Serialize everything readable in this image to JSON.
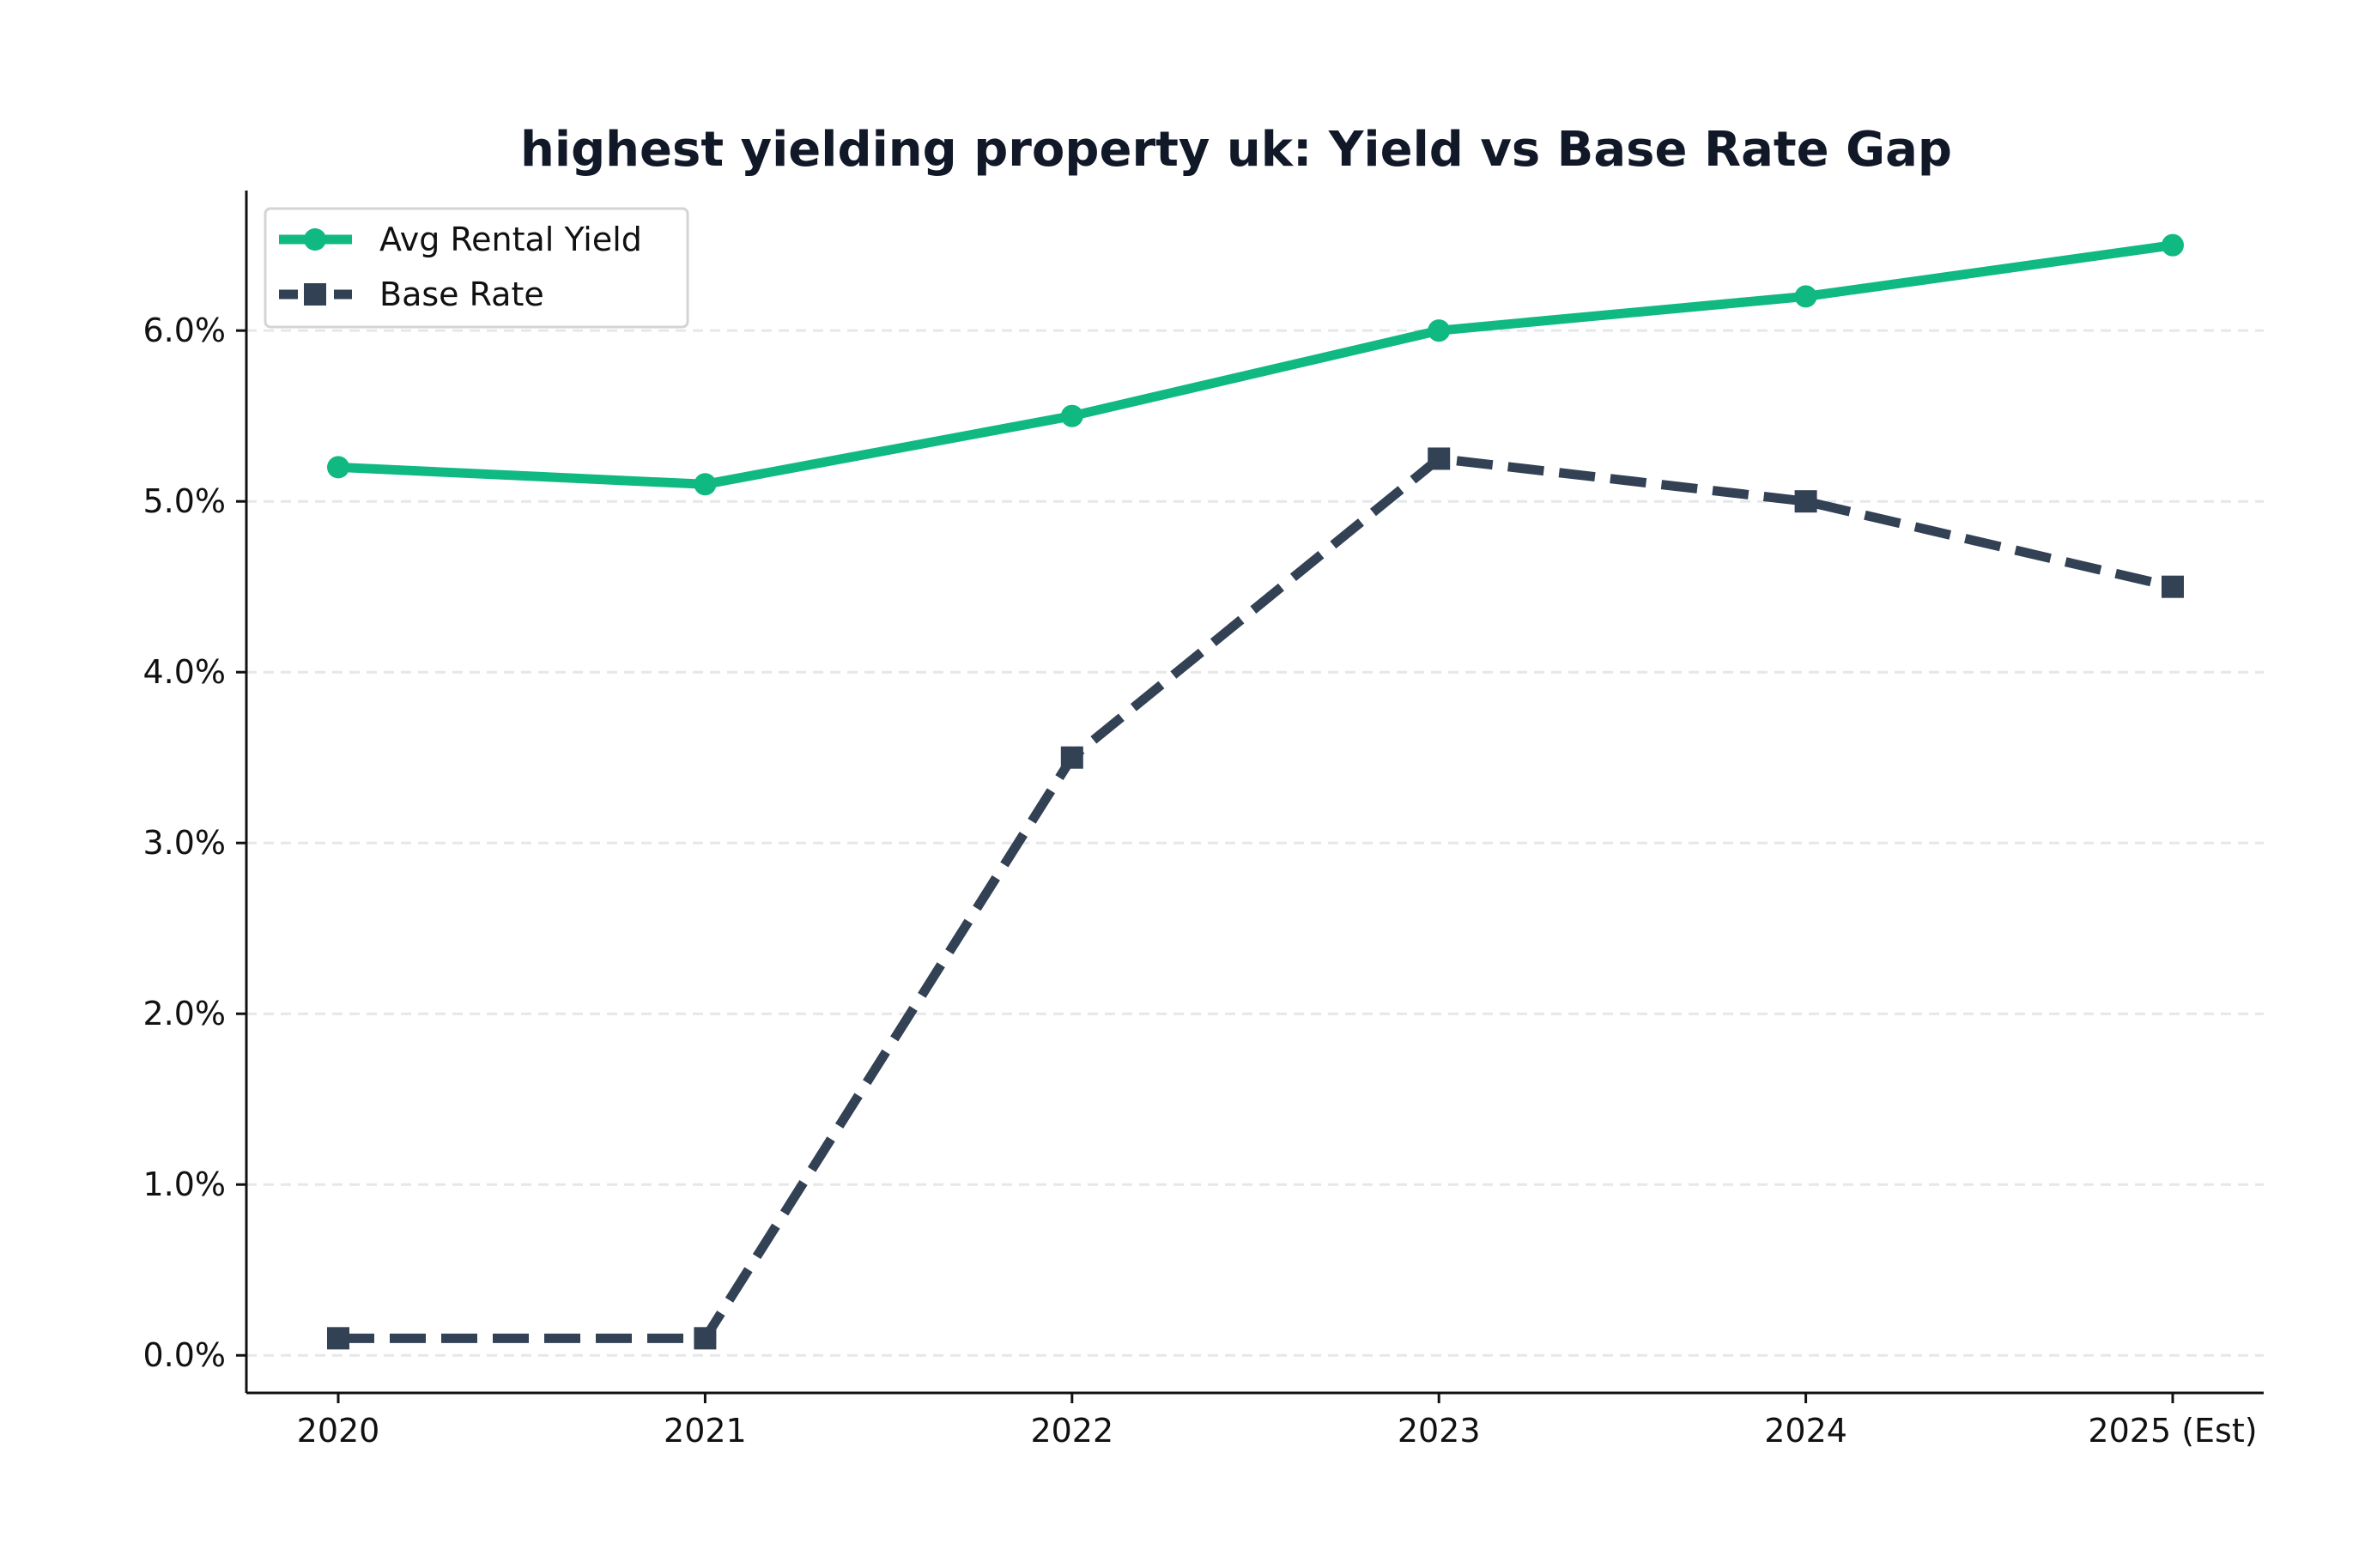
{
  "chart_data": {
    "type": "line",
    "title": "highest yielding property uk: Yield vs Base Rate Gap",
    "xlabel": "",
    "ylabel": "",
    "categories": [
      "2020",
      "2021",
      "2022",
      "2023",
      "2024",
      "2025 (Est)"
    ],
    "y_ticks": [
      0,
      1,
      2,
      3,
      4,
      5,
      6
    ],
    "y_tick_labels": [
      "0.0%",
      "1.0%",
      "2.0%",
      "3.0%",
      "4.0%",
      "5.0%",
      "6.0%"
    ],
    "ylim": [
      -0.22,
      6.82
    ],
    "grid": "horizontal dashed",
    "legend_position": "top-left",
    "series": [
      {
        "name": "Avg Rental Yield",
        "values": [
          5.2,
          5.1,
          5.5,
          6.0,
          6.2,
          6.5
        ],
        "color": "#10b981",
        "line_style": "solid",
        "marker": "circle"
      },
      {
        "name": "Base Rate",
        "values": [
          0.1,
          0.1,
          3.5,
          5.25,
          5.0,
          4.5
        ],
        "color": "#334155",
        "line_style": "dashed",
        "marker": "square"
      }
    ]
  }
}
